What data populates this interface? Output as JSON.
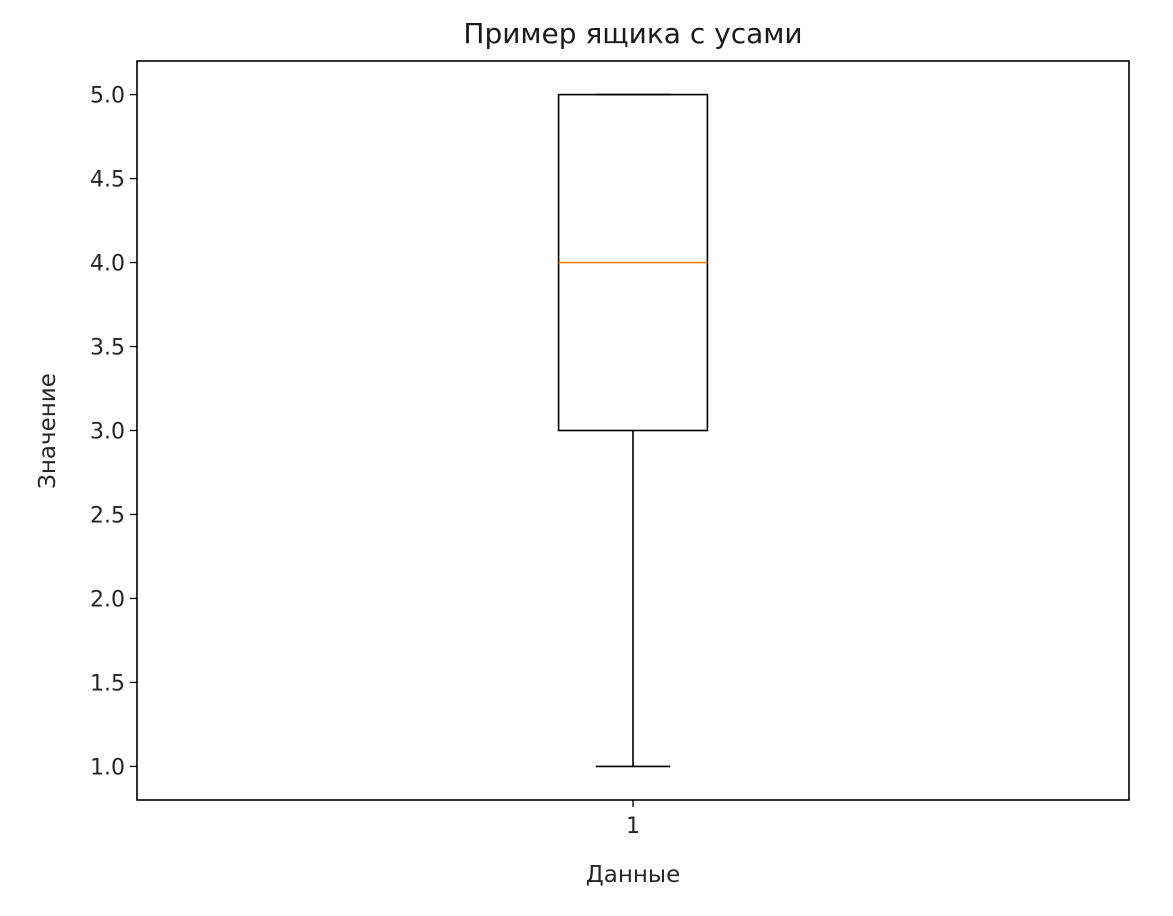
{
  "chart_data": {
    "type": "box",
    "title": "Пример ящика с усами",
    "xlabel": "Данные",
    "ylabel": "Значение",
    "categories": [
      "1"
    ],
    "boxes": [
      {
        "whislo": 1.0,
        "q1": 3.0,
        "med": 4.0,
        "q3": 5.0,
        "whishi": 5.0
      }
    ],
    "xlim": [
      0.5,
      1.5
    ],
    "ylim": [
      0.8,
      5.2
    ],
    "yticks": [
      1.0,
      1.5,
      2.0,
      2.5,
      3.0,
      3.5,
      4.0,
      4.5,
      5.0
    ],
    "ytick_labels": [
      "1.0",
      "1.5",
      "2.0",
      "2.5",
      "3.0",
      "3.5",
      "4.0",
      "4.5",
      "5.0"
    ],
    "grid": false,
    "colors": {
      "box": "#000000",
      "median": "#ff7f0e"
    }
  }
}
